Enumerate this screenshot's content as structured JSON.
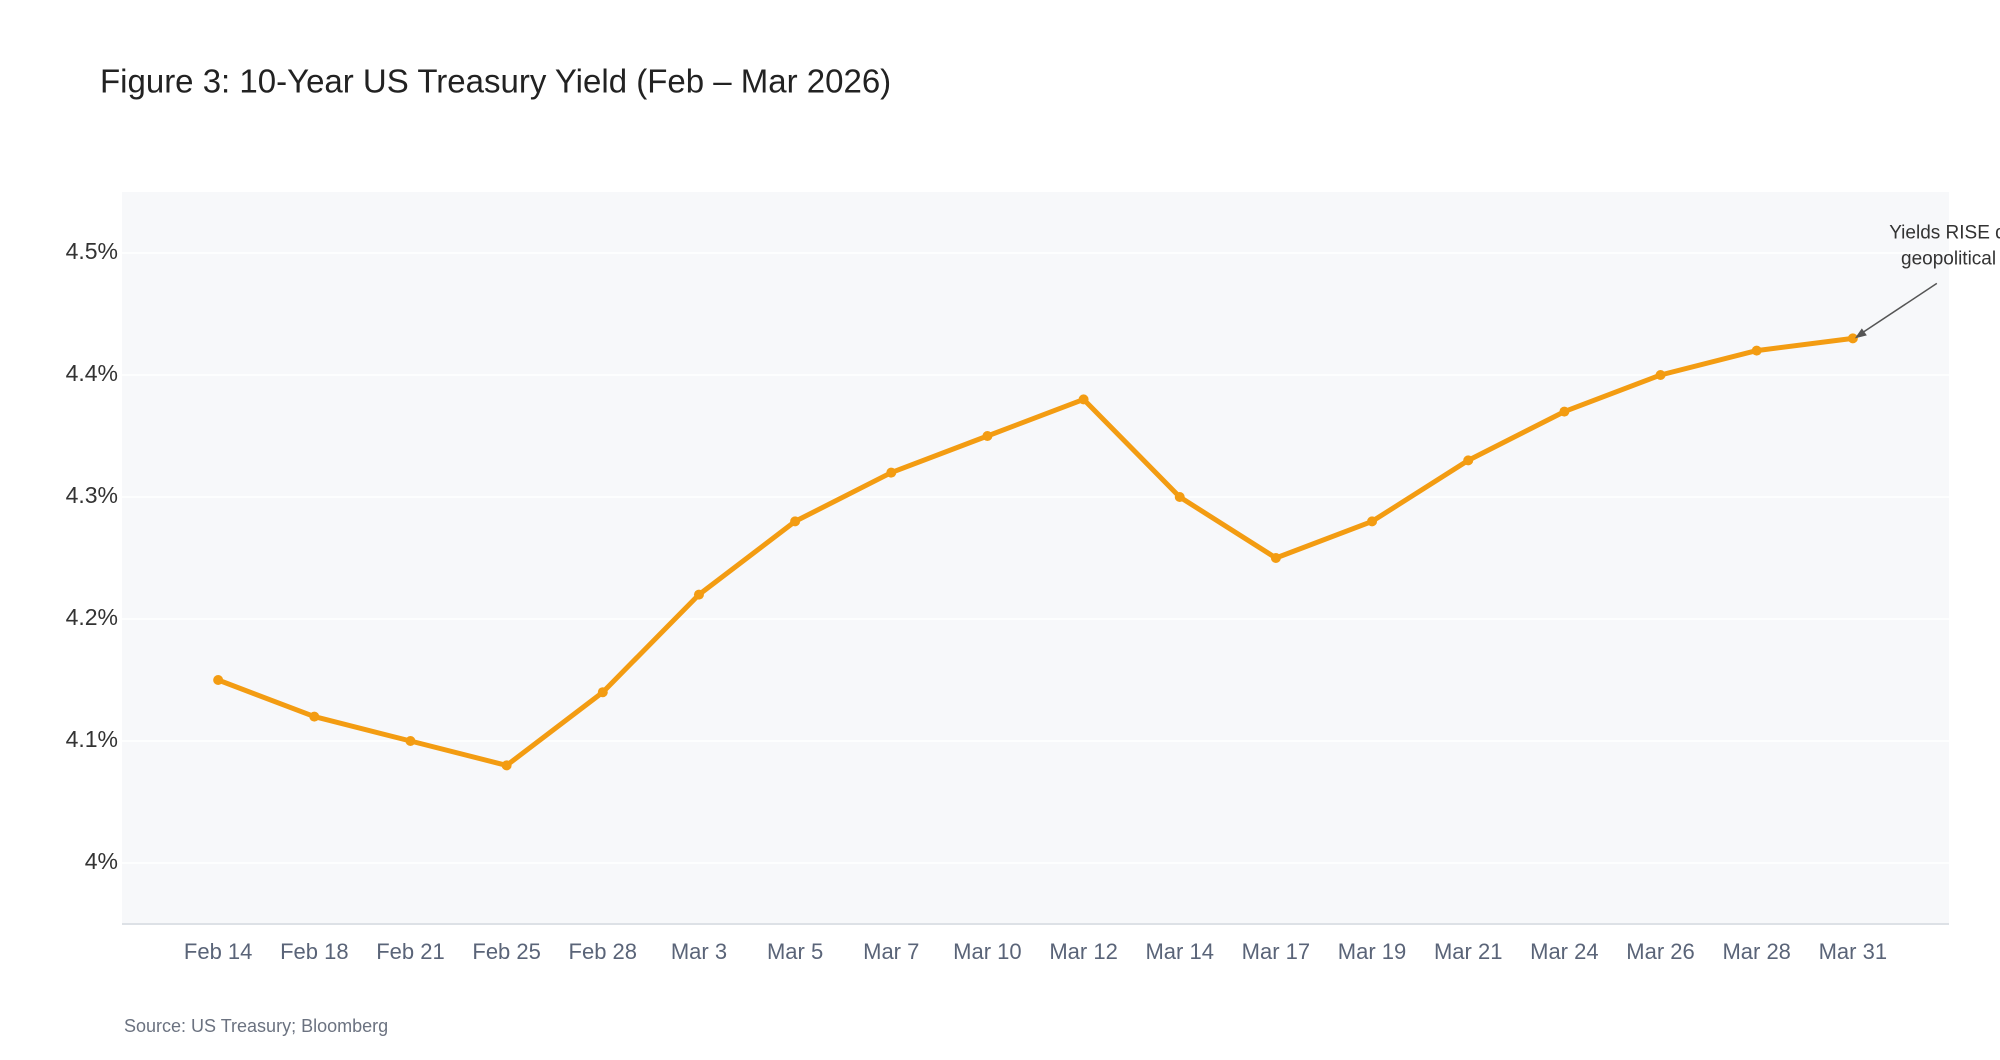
{
  "chart_data": {
    "type": "line",
    "title": "Figure 3: 10-Year US Treasury Yield (Feb – Mar 2026)",
    "categories": [
      "Feb 14",
      "Feb 18",
      "Feb 21",
      "Feb 25",
      "Feb 28",
      "Mar 3",
      "Mar 5",
      "Mar 7",
      "Mar 10",
      "Mar 12",
      "Mar 14",
      "Mar 17",
      "Mar 19",
      "Mar 21",
      "Mar 24",
      "Mar 26",
      "Mar 28",
      "Mar 31"
    ],
    "series": [
      {
        "color": "#f39c12",
        "values": [
          4.15,
          4.12,
          4.1,
          4.08,
          4.14,
          4.22,
          4.28,
          4.32,
          4.35,
          4.38,
          4.3,
          4.25,
          4.28,
          4.33,
          4.37,
          4.4,
          4.42,
          4.43
        ]
      }
    ],
    "ylim": [
      3.95,
      4.55
    ],
    "yticks": [
      {
        "value": 4,
        "label": "4%"
      },
      {
        "value": 4.1,
        "label": "4.1%"
      },
      {
        "value": 4.2,
        "label": "4.2%"
      },
      {
        "value": 4.3,
        "label": "4.3%"
      },
      {
        "value": 4.4,
        "label": "4.4%"
      },
      {
        "value": 4.5,
        "label": "4.5%"
      }
    ],
    "grid": true,
    "annotation": [
      "Yields RISE despite",
      "geopolitical crisis"
    ],
    "source": "Source: US Treasury; Bloomberg"
  }
}
